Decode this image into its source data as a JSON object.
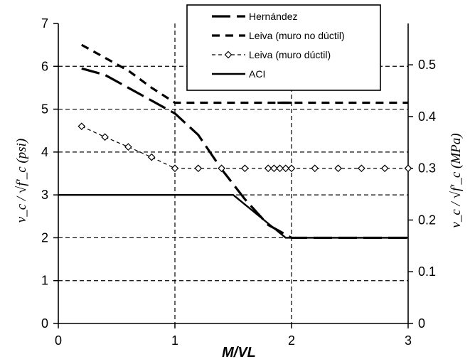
{
  "chart_data": {
    "type": "line",
    "title": "",
    "xlabel": "M/VL",
    "ylabel": "v_c / √f'_c (psi)",
    "ylabel_right": "v_c / √f'_c (MPa)",
    "xlim": [
      0,
      3
    ],
    "ylim": [
      0,
      7
    ],
    "ylim_right": [
      0,
      0.58
    ],
    "x_ticks": [
      "0",
      "1",
      "2",
      "3"
    ],
    "y_ticks": [
      "0",
      "1",
      "2",
      "3",
      "4",
      "5",
      "6",
      "7"
    ],
    "y_ticks_right": [
      "0",
      "0.1",
      "0.2",
      "0.3",
      "0.4",
      "0.5"
    ],
    "grid": true,
    "legend_position": "top-center",
    "series": [
      {
        "name": "Hernández",
        "style": "long-dash",
        "x": [
          0.2,
          0.4,
          0.6,
          0.8,
          1.0,
          1.2,
          1.4,
          1.6,
          1.8,
          2.0,
          3.0
        ],
        "y": [
          5.95,
          5.8,
          5.5,
          5.2,
          4.9,
          4.4,
          3.6,
          2.9,
          2.3,
          2.0,
          2.0
        ],
        "overlap_from_x": 1.88,
        "overlap_y": 5.15
      },
      {
        "name": "Leiva (muro no dúctil)",
        "style": "short-dash",
        "x": [
          0.2,
          0.4,
          0.6,
          0.8,
          1.0,
          1.2,
          1.4,
          1.6,
          1.8,
          2.0,
          2.2,
          2.4,
          2.6,
          2.8,
          3.0
        ],
        "y": [
          6.5,
          6.2,
          5.9,
          5.5,
          5.15,
          5.15,
          5.15,
          5.15,
          5.15,
          5.15,
          5.15,
          5.15,
          5.15,
          5.15,
          5.15
        ]
      },
      {
        "name": "Leiva (muro dúctil)",
        "style": "dashed-diamond",
        "x": [
          0.2,
          0.4,
          0.6,
          0.8,
          1.0,
          1.2,
          1.4,
          1.6,
          1.8,
          1.85,
          1.9,
          1.95,
          2.0,
          2.2,
          2.4,
          2.6,
          2.8,
          3.0
        ],
        "y": [
          4.6,
          4.35,
          4.12,
          3.88,
          3.62,
          3.62,
          3.62,
          3.62,
          3.62,
          3.62,
          3.62,
          3.62,
          3.62,
          3.62,
          3.62,
          3.62,
          3.62,
          3.62
        ]
      },
      {
        "name": "ACI",
        "style": "solid",
        "x": [
          0.0,
          1.5,
          1.95,
          3.0
        ],
        "y": [
          3.0,
          3.0,
          2.0,
          2.0
        ]
      }
    ]
  }
}
